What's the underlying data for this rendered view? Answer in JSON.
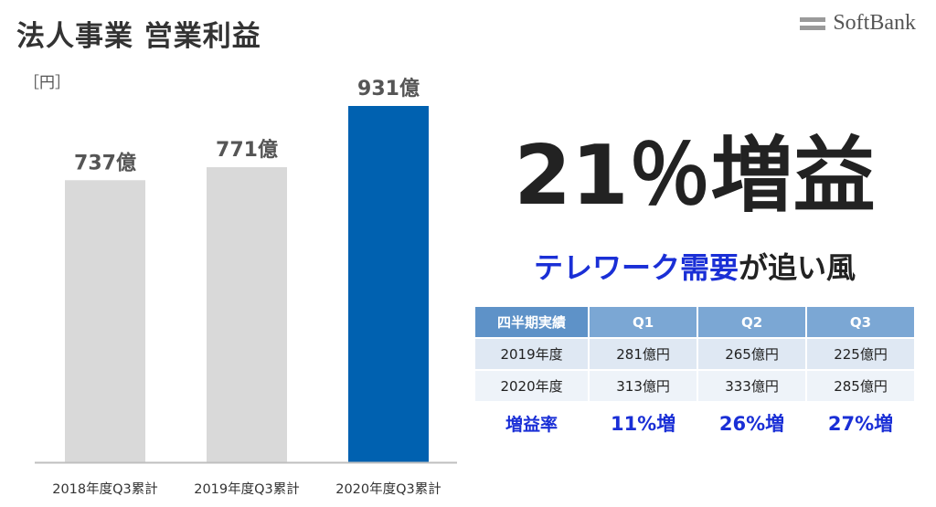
{
  "header": {
    "title": "法人事業 営業利益",
    "brand": "SoftBank"
  },
  "chart_data": {
    "type": "bar",
    "unit_label": "［円］",
    "categories": [
      "2018年度Q3累計",
      "2019年度Q3累計",
      "2020年度Q3累計"
    ],
    "values": [
      737,
      771,
      931
    ],
    "value_labels": [
      "737億",
      "771億",
      "931億"
    ],
    "ylim": [
      0,
      931
    ],
    "grid": false,
    "legend": "none",
    "colors": [
      "#d9d9d9",
      "#d9d9d9",
      "#0061b0"
    ]
  },
  "headline": {
    "main": "21％増益",
    "sub_blue": "テレワーク需要",
    "sub_dark": "が追い風"
  },
  "table": {
    "headers": [
      "四半期実績",
      "Q1",
      "Q2",
      "Q3"
    ],
    "rows": [
      {
        "label": "2019年度",
        "cells": [
          "281億円",
          "265億円",
          "225億円"
        ]
      },
      {
        "label": "2020年度",
        "cells": [
          "313億円",
          "333億円",
          "285億円"
        ]
      }
    ],
    "rate": {
      "label": "増益率",
      "cells": [
        "11%増",
        "26%増",
        "27%増"
      ]
    }
  },
  "colors": {
    "accent_blue": "#1a2fd6",
    "bar_highlight": "#0061b0",
    "bar_base": "#d9d9d9",
    "table_header": "#7ba7d4"
  }
}
